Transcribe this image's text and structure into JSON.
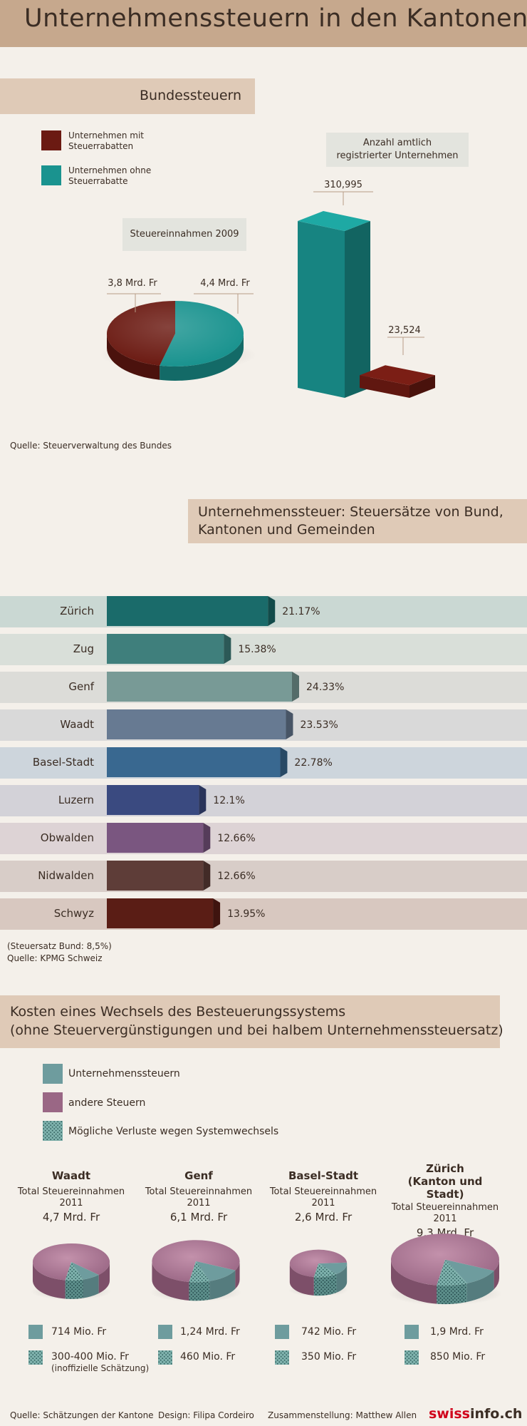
{
  "header": {
    "title": "Unternehmenssteuern in den Kantonen"
  },
  "colors": {
    "rebate": "#6b1a12",
    "norebate": "#1a938f",
    "unternehmenssteuern": "#6e9c9e",
    "andere": "#9a6785",
    "verluste": "#6fa6a2"
  },
  "section1": {
    "title": "Bundessteuern",
    "legend": [
      {
        "label_line1": "Unternehmen mit",
        "label_line2": "Steuerrabatten",
        "color": "#6b1a12"
      },
      {
        "label_line1": "Unternehmen ohne",
        "label_line2": "Steuerrabatte",
        "color": "#1a938f"
      }
    ],
    "source": "Quelle: Steuerverwaltung des Bundes"
  },
  "section2": {
    "title_line1": "Unternehmenssteuer: Steuersätze von Bund,",
    "title_line2": "Kantonen und Gemeinden",
    "note1": "(Steuersatz Bund: 8,5%)",
    "note2": "Quelle: KPMG Schweiz"
  },
  "section3": {
    "title_line1": "Kosten eines Wechsels des Besteuerungssystems",
    "title_line2": "(ohne Steuervergünstigungen und bei halbem Unternehmenssteuersatz)",
    "legend": [
      {
        "label": "Unternehmenssteuern",
        "color": "#6e9c9e"
      },
      {
        "label": "andere Steuern",
        "color": "#9a6785"
      },
      {
        "label": "Mögliche Verluste wegen Systemwechsels",
        "color": "#6fa6a2"
      }
    ]
  },
  "footer": {
    "source": "Quelle: Schätzungen der Kantone",
    "design": "Design: Filipa Cordeiro",
    "compilation": "Zusammenstellung: Matthew Allen",
    "brand_part1": "swiss",
    "brand_part2": "info.ch"
  },
  "chart_data": [
    {
      "type": "pie",
      "title": "Steuereinnahmen 2009",
      "slices": [
        {
          "name": "Unternehmen mit Steuerrabatten",
          "value": 3.8,
          "label": "3,8 Mrd. Fr",
          "color": "#6b1a12"
        },
        {
          "name": "Unternehmen ohne Steuerrabatte",
          "value": 4.4,
          "label": "4,4 Mrd. Fr",
          "color": "#1a938f"
        }
      ]
    },
    {
      "type": "bar",
      "title_line1": "Anzahl amtlich",
      "title_line2": "registrierter Unternehmen",
      "categories": [
        "Unternehmen ohne Steuerrabatte",
        "Unternehmen mit Steuerrabatten"
      ],
      "values": [
        310995,
        23524
      ],
      "labels": [
        "310,995",
        "23,524"
      ],
      "colors": [
        "#1a938f",
        "#6b1a12"
      ]
    },
    {
      "type": "bar",
      "orientation": "horizontal",
      "categories": [
        "Zürich",
        "Zug",
        "Genf",
        "Waadt",
        "Basel-Stadt",
        "Luzern",
        "Obwalden",
        "Nidwalden",
        "Schwyz"
      ],
      "values": [
        21.17,
        15.38,
        24.33,
        23.53,
        22.78,
        12.1,
        12.66,
        12.66,
        13.95
      ],
      "labels": [
        "21.17%",
        "15.38%",
        "24.33%",
        "23.53%",
        "22.78%",
        "12.1%",
        "12.66%",
        "12.66%",
        "13.95%"
      ],
      "bar_colors": [
        "#1a6b6a",
        "#3f7f7c",
        "#789a96",
        "#677a92",
        "#396890",
        "#3a4a80",
        "#7a5680",
        "#5e3d38",
        "#5a1d15"
      ],
      "band_colors": [
        "#cad8d3",
        "#d9dfd9",
        "#dcdcd8",
        "#d9d9d9",
        "#cdd5dc",
        "#d3d2d8",
        "#ddd3d5",
        "#d8cdc8",
        "#d8c8c0"
      ]
    },
    {
      "type": "pie",
      "title": "Waadt",
      "subtitle_line1": "Total Steuereinnahmen",
      "subtitle_line2": "2011",
      "total": "4,7 Mrd. Fr",
      "total_value": 4.7,
      "slices": [
        {
          "name": "Unternehmenssteuern",
          "value": 714,
          "label": "714 Mio. Fr"
        },
        {
          "name": "Mögliche Verluste wegen Systemwechsels",
          "value": 350,
          "label": "300-400 Mio. Fr",
          "note": "(inoffizielle Schätzung)"
        }
      ]
    },
    {
      "type": "pie",
      "title": "Genf",
      "subtitle_line1": "Total Steuereinnahmen",
      "subtitle_line2": "2011",
      "total": "6,1 Mrd. Fr",
      "total_value": 6.1,
      "slices": [
        {
          "name": "Unternehmenssteuern",
          "value": 1240,
          "label": "1,24 Mrd. Fr"
        },
        {
          "name": "Mögliche Verluste wegen Systemwechsels",
          "value": 460,
          "label": "460 Mio. Fr"
        }
      ]
    },
    {
      "type": "pie",
      "title": "Basel-Stadt",
      "subtitle_line1": "Total Steuereinnahmen",
      "subtitle_line2": "2011",
      "total": "2,6 Mrd. Fr",
      "total_value": 2.6,
      "slices": [
        {
          "name": "Unternehmenssteuern",
          "value": 742,
          "label": "742 Mio. Fr"
        },
        {
          "name": "Mögliche Verluste wegen Systemwechsels",
          "value": 350,
          "label": "350 Mio. Fr"
        }
      ]
    },
    {
      "type": "pie",
      "title": "Zürich",
      "title_line2": "(Kanton und Stadt)",
      "subtitle_line1": "Total Steuereinnahmen",
      "subtitle_line2": "2011",
      "total": "9,3 Mrd. Fr",
      "total_value": 9.3,
      "slices": [
        {
          "name": "Unternehmenssteuern",
          "value": 1900,
          "label": "1,9 Mrd. Fr"
        },
        {
          "name": "Mögliche Verluste wegen Systemwechsels",
          "value": 850,
          "label": "850 Mio. Fr"
        }
      ]
    }
  ]
}
